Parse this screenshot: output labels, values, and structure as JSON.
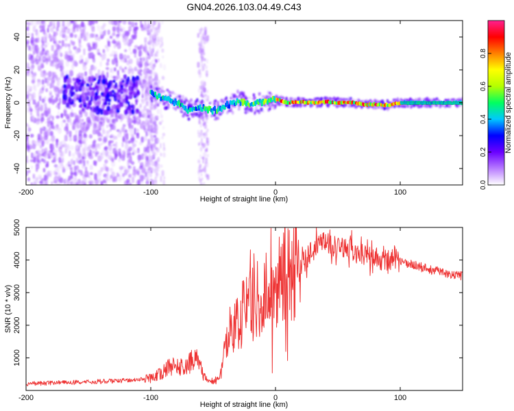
{
  "chart_data": [
    {
      "type": "heatmap",
      "title": "GN04.2026.103.04.49.C43",
      "xlabel": "Height of straight line (km)",
      "ylabel": "Frequency (Hz)",
      "xlim": [
        -200,
        150
      ],
      "ylim": [
        -50,
        50
      ],
      "x_ticks": [
        -200,
        -100,
        0,
        100
      ],
      "y_ticks": [
        -40,
        -20,
        0,
        20,
        40
      ],
      "colorbar": {
        "label": "Normalized spectral amplitude",
        "range": [
          0,
          1
        ],
        "ticks": [
          0.0,
          0.2,
          0.4,
          0.6,
          0.8
        ],
        "tick_labels": [
          "0.0",
          "0.2",
          "0.4",
          "0.6",
          "0.8"
        ],
        "colors": [
          "#ffffff",
          "#b87cff",
          "#6a00ff",
          "#0000ff",
          "#00c8ff",
          "#00ff60",
          "#b4ff00",
          "#ffff00",
          "#ff8000",
          "#ff0000",
          "#ff2090"
        ]
      },
      "ridge": {
        "x": [
          -100,
          -90,
          -80,
          -70,
          -60,
          -50,
          -40,
          -30,
          -20,
          -10,
          0,
          10,
          20,
          30,
          40,
          50,
          60,
          70,
          80,
          90,
          100,
          150
        ],
        "freq": [
          6,
          3,
          0,
          -4,
          -3,
          -5,
          -2,
          1,
          -1,
          0.5,
          2,
          0,
          0.5,
          0,
          0.5,
          0,
          0.3,
          -1,
          -1,
          -1.5,
          0,
          0
        ]
      }
    },
    {
      "type": "line",
      "xlabel": "Height of straight line (km)",
      "ylabel": "SNR (10 * v/v)",
      "xlim": [
        -200,
        150
      ],
      "ylim": [
        0,
        5000
      ],
      "x_ticks": [
        -200,
        -100,
        0,
        100
      ],
      "y_ticks": [
        1000,
        2000,
        3000,
        4000,
        5000
      ],
      "series": [
        {
          "name": "SNR",
          "color": "#ee3333",
          "x": [
            -200,
            -180,
            -160,
            -140,
            -120,
            -110,
            -100,
            -90,
            -85,
            -80,
            -75,
            -70,
            -65,
            -62,
            -58,
            -55,
            -50,
            -45,
            -42,
            -40,
            -38,
            -35,
            -30,
            -25,
            -20,
            -15,
            -10,
            -5,
            0,
            5,
            10,
            20,
            30,
            35,
            40,
            50,
            60,
            70,
            80,
            90,
            95,
            100,
            110,
            120,
            130,
            140,
            150
          ],
          "y": [
            180,
            200,
            220,
            250,
            280,
            300,
            320,
            500,
            650,
            700,
            600,
            700,
            900,
            850,
            400,
            300,
            250,
            300,
            900,
            1500,
            1700,
            1900,
            2200,
            2400,
            2600,
            2800,
            3000,
            3150,
            3200,
            3300,
            3450,
            3800,
            4300,
            4450,
            4550,
            4400,
            4300,
            4150,
            4050,
            4000,
            4050,
            3950,
            3850,
            3750,
            3650,
            3550,
            3500
          ]
        }
      ]
    }
  ]
}
